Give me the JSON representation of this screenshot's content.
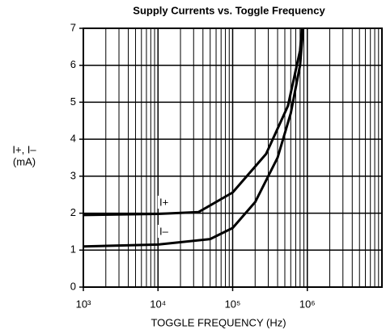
{
  "chart_data": {
    "type": "line",
    "title": "Supply Currents vs. Toggle Frequency",
    "x_label": "TOGGLE FREQUENCY (Hz)",
    "y_label": [
      "I+, I–",
      "(mA)"
    ],
    "log_x": true,
    "grid": true,
    "xlim": [
      1000,
      10000000
    ],
    "xticks": [
      {
        "value": 1000,
        "label": "10³"
      },
      {
        "value": 10000,
        "label": "10⁴"
      },
      {
        "value": 100000,
        "label": "10⁵"
      },
      {
        "value": 1000000,
        "label": "10⁶"
      }
    ],
    "xminorticks": [
      2000,
      3000,
      4000,
      5000,
      6000,
      7000,
      8000,
      9000,
      20000,
      30000,
      40000,
      50000,
      60000,
      70000,
      80000,
      90000,
      200000,
      300000,
      400000,
      500000,
      600000,
      700000,
      800000,
      900000,
      2000000,
      3000000,
      4000000,
      5000000,
      6000000,
      7000000,
      8000000,
      9000000
    ],
    "ylim": [
      0,
      7
    ],
    "yticks": [
      0,
      1,
      2,
      3,
      4,
      5,
      6,
      7
    ],
    "series": [
      {
        "name": "I+",
        "color": "#000000",
        "x": [
          1000,
          10000,
          35000,
          100000,
          280000,
          550000,
          800000,
          850000
        ],
        "values": [
          1.95,
          1.98,
          2.03,
          2.56,
          3.6,
          4.9,
          6.4,
          7.0
        ]
      },
      {
        "name": "I–",
        "color": "#000000",
        "x": [
          1000,
          10000,
          50000,
          100000,
          200000,
          400000,
          600000,
          800000,
          880000
        ],
        "values": [
          1.1,
          1.15,
          1.3,
          1.6,
          2.3,
          3.5,
          4.7,
          6.0,
          7.0
        ]
      }
    ]
  }
}
